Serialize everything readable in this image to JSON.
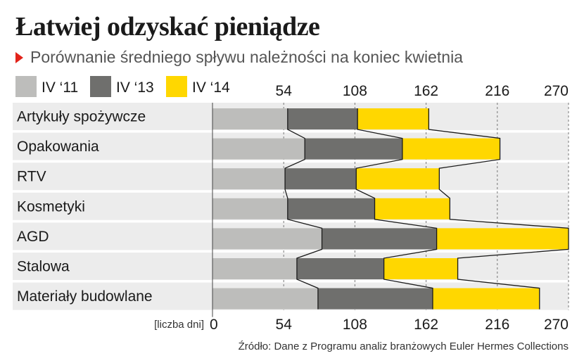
{
  "title": "Łatwiej odzyskać pieniądze",
  "subtitle": "Porównanie średniego spływu należności na koniec kwietnia",
  "source": "Źródło: Dane z Programu analiz branżowych Euler Hermes Collections",
  "colors": {
    "iv11": "#bdbdbb",
    "iv13": "#6f6f6d",
    "iv14": "#ffd700",
    "rowBg": "#ececec",
    "line": "#1a1a1a"
  },
  "chart_data": {
    "type": "bar",
    "stacked": true,
    "unit_label": "[liczba dni]",
    "xlim": [
      0,
      270
    ],
    "ticks": [
      0,
      54,
      108,
      162,
      216,
      270
    ],
    "top_ticks": [
      54,
      108,
      162,
      216,
      270
    ],
    "categories": [
      "Artykuły spożywcze",
      "Opakowania",
      "RTV",
      "Kosmetyki",
      "AGD",
      "Stalowa",
      "Materiały budowlane"
    ],
    "series": [
      {
        "name": "IV ‘11",
        "values": [
          57,
          70,
          55,
          57,
          83,
          64,
          80
        ]
      },
      {
        "name": "IV ‘13",
        "values": [
          110,
          144,
          109,
          123,
          170,
          130,
          167
        ]
      },
      {
        "name": "IV ‘14",
        "values": [
          164,
          218,
          172,
          180,
          270,
          186,
          248
        ]
      }
    ],
    "grid": true,
    "legend": "top-left"
  }
}
